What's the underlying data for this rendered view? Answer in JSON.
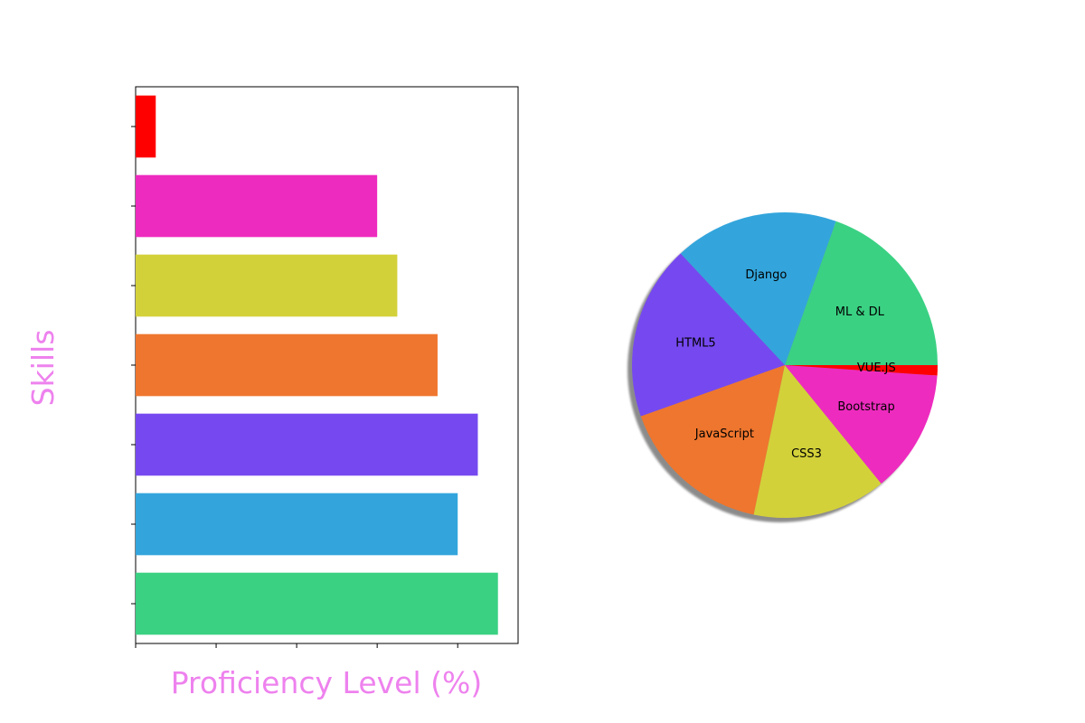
{
  "chart_data": [
    {
      "type": "bar",
      "orientation": "horizontal",
      "xlabel": "Proficiency Level (%)",
      "ylabel": "Skills",
      "xlim": [
        0,
        95
      ],
      "xticks": [
        0,
        20,
        40,
        60,
        80
      ],
      "tick_labels_visible": false,
      "series": [
        {
          "values": [
            90,
            80,
            85,
            75,
            65,
            60,
            5
          ],
          "colors": [
            "#3ad183",
            "#33a5dc",
            "#7649f0",
            "#ef762e",
            "#d3d13a",
            "#ee2bbf",
            "#ff0000"
          ]
        }
      ]
    },
    {
      "type": "pie",
      "shadow": true,
      "labels": [
        "ML & DL",
        "Django",
        "HTML5",
        "JavaScript",
        "CSS3",
        "Bootstrap",
        "VUE.JS"
      ],
      "values": [
        90,
        80,
        85,
        75,
        65,
        60,
        5
      ],
      "colors": [
        "#3ad183",
        "#33a5dc",
        "#7649f0",
        "#ef762e",
        "#d3d13a",
        "#ee2bbf",
        "#ff0000"
      ]
    }
  ]
}
